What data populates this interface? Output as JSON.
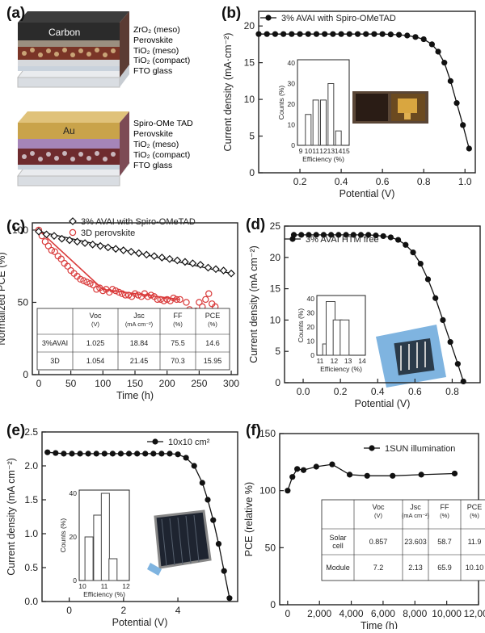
{
  "panels": {
    "a": {
      "label": "(a)",
      "top_stack": {
        "electrode": "Carbon",
        "layers": [
          "ZrO₂ (meso)",
          "Perovskite",
          "TiO₂ (meso)",
          "TiO₂ (compact)",
          "FTO glass"
        ]
      },
      "bottom_stack": {
        "electrode": "Au",
        "layers": [
          "Spiro-OMe TAD",
          "Perovskite",
          "TiO₂ (meso)",
          "TiO₂ (compact)",
          "FTO glass"
        ]
      }
    },
    "b": {
      "label": "(b)"
    },
    "c": {
      "label": "(c)"
    },
    "d": {
      "label": "(d)"
    },
    "e": {
      "label": "(e)"
    },
    "f": {
      "label": "(f)"
    }
  },
  "chart_data": [
    {
      "id": "b",
      "type": "line",
      "xlabel": "Potential (V)",
      "ylabel": "Current density (mA·cm⁻²)",
      "xlim": [
        0,
        1.05
      ],
      "ylim": [
        0,
        22
      ],
      "xticks": [
        "0.2",
        "0.4",
        "0.6",
        "0.8",
        "1.0"
      ],
      "yticks": [
        "0",
        "5",
        "10",
        "15",
        "20"
      ],
      "series": [
        {
          "name": "3% AVAI with Spiro-OMeTAD",
          "x": [
            0,
            0.04,
            0.08,
            0.12,
            0.16,
            0.2,
            0.24,
            0.28,
            0.32,
            0.36,
            0.4,
            0.44,
            0.48,
            0.52,
            0.56,
            0.6,
            0.64,
            0.68,
            0.72,
            0.76,
            0.8,
            0.84,
            0.87,
            0.9,
            0.93,
            0.96,
            0.99,
            1.02
          ],
          "y": [
            18.9,
            18.9,
            18.9,
            18.9,
            18.9,
            18.9,
            18.9,
            18.9,
            18.9,
            18.9,
            18.9,
            18.9,
            18.9,
            18.9,
            18.9,
            18.9,
            18.85,
            18.8,
            18.7,
            18.5,
            18.2,
            17.5,
            16.5,
            15.0,
            12.5,
            9.5,
            6.5,
            3.3
          ]
        }
      ],
      "inset": {
        "type": "bar",
        "xlabel": "Efficiency (%)",
        "ylabel": "Counts (%)",
        "categories": [
          "9",
          "10",
          "11",
          "12",
          "13",
          "14",
          "15"
        ],
        "ylim": [
          0,
          40
        ],
        "yticks": [
          "0",
          "10",
          "20",
          "30",
          "40"
        ],
        "values": [
          0,
          15,
          22,
          22,
          30,
          7,
          0
        ]
      }
    },
    {
      "id": "c",
      "type": "scatter",
      "xlabel": "Time (h)",
      "ylabel": "Normalized PCE (%)",
      "xlim": [
        -10,
        310
      ],
      "ylim": [
        0,
        105
      ],
      "xticks": [
        "0",
        "50",
        "100",
        "150",
        "200",
        "250",
        "300"
      ],
      "yticks": [
        "0",
        "50",
        "100"
      ],
      "series": [
        {
          "name": "3% AVAI with Spiro-OMeTAD",
          "color": "#111111",
          "x": [
            0,
            12,
            24,
            36,
            48,
            60,
            72,
            84,
            96,
            108,
            120,
            132,
            144,
            156,
            168,
            180,
            192,
            204,
            216,
            228,
            240,
            252,
            264,
            276,
            288,
            300
          ],
          "y": [
            99,
            97,
            96,
            94,
            93,
            92,
            91,
            90,
            89,
            88,
            87,
            86,
            85,
            84,
            83,
            82,
            81,
            80,
            79,
            78,
            77,
            76,
            74,
            73,
            72,
            70
          ]
        },
        {
          "name": "3D perovskite",
          "color": "#d93a3a",
          "x": [
            0,
            5,
            10,
            15,
            20,
            25,
            30,
            35,
            40,
            45,
            50,
            55,
            60,
            65,
            70,
            75,
            80,
            85,
            90,
            95,
            100,
            105,
            110,
            115,
            120,
            125,
            130,
            135,
            140,
            145,
            150,
            155,
            160,
            165,
            170,
            175,
            180,
            185,
            190,
            195,
            200,
            205,
            210,
            215,
            220,
            230,
            235,
            240,
            245,
            250,
            255,
            260,
            265,
            270,
            275
          ],
          "y": [
            100,
            96,
            92,
            89,
            86,
            85,
            82,
            80,
            77,
            75,
            72,
            70,
            68,
            66,
            65,
            64,
            63,
            62,
            59,
            60,
            58,
            59,
            57,
            59,
            58,
            57,
            56,
            55,
            55,
            54,
            56,
            55,
            54,
            56,
            54,
            55,
            54,
            52,
            52,
            51,
            52,
            51,
            53,
            52,
            52,
            50,
            45,
            42,
            44,
            50,
            47,
            52,
            56,
            49,
            47
          ]
        }
      ],
      "table": {
        "headers": [
          "",
          "Voc(V)",
          "Jsc (mA cm⁻²)",
          "FF (%)",
          "PCE (%)"
        ],
        "rows": [
          [
            "3%AVAI",
            "1.025",
            "18.84",
            "75.5",
            "14.6"
          ],
          [
            "3D",
            "1.054",
            "21.45",
            "70.3",
            "15.95"
          ]
        ]
      }
    },
    {
      "id": "d",
      "type": "line",
      "xlabel": "Potential (V)",
      "ylabel": "Current density (mA cm⁻²)",
      "xlim": [
        -0.1,
        0.95
      ],
      "ylim": [
        0,
        25
      ],
      "xticks": [
        "0.0",
        "0.2",
        "0.4",
        "0.6",
        "0.8"
      ],
      "yticks": [
        "0",
        "5",
        "10",
        "15",
        "20",
        "25"
      ],
      "series": [
        {
          "name": "3% AVAI HTM free",
          "x": [
            -0.05,
            -0.01,
            0.03,
            0.07,
            0.11,
            0.15,
            0.19,
            0.23,
            0.27,
            0.31,
            0.35,
            0.39,
            0.43,
            0.47,
            0.51,
            0.55,
            0.59,
            0.63,
            0.67,
            0.71,
            0.75,
            0.79,
            0.83,
            0.86
          ],
          "y": [
            23.6,
            23.6,
            23.6,
            23.6,
            23.6,
            23.6,
            23.6,
            23.6,
            23.6,
            23.6,
            23.6,
            23.5,
            23.4,
            23.2,
            22.8,
            22.0,
            20.8,
            19.0,
            16.5,
            13.5,
            10.0,
            6.5,
            3.0,
            0.2
          ]
        }
      ],
      "inset": {
        "type": "bar",
        "xlabel": "Efficiency (%)",
        "ylabel": "Counts (%)",
        "categories": [
          "11",
          "12",
          "13",
          "14"
        ],
        "ylim": [
          0,
          40
        ],
        "yticks": [
          "0",
          "10",
          "20",
          "30",
          "40"
        ],
        "x": [
          11.5,
          11.75,
          12.25,
          12.75
        ],
        "values": [
          8,
          38,
          25,
          25
        ]
      }
    },
    {
      "id": "e",
      "type": "line",
      "xlabel": "Potential (V)",
      "ylabel": "Current density (mA cm⁻²)",
      "xlim": [
        -1,
        6.2
      ],
      "ylim": [
        0,
        2.5
      ],
      "xticks": [
        "0",
        "2",
        "4"
      ],
      "yticks": [
        "0.0",
        "0.5",
        "1.0",
        "1.5",
        "2.0",
        "2.5"
      ],
      "series": [
        {
          "name": "10x10 cm²",
          "x": [
            -0.8,
            -0.5,
            -0.2,
            0.1,
            0.4,
            0.7,
            1.0,
            1.3,
            1.6,
            1.9,
            2.2,
            2.5,
            2.8,
            3.1,
            3.4,
            3.7,
            4.0,
            4.3,
            4.6,
            4.9,
            5.1,
            5.3,
            5.5,
            5.7,
            5.9
          ],
          "y": [
            2.2,
            2.19,
            2.18,
            2.18,
            2.18,
            2.18,
            2.18,
            2.18,
            2.18,
            2.18,
            2.18,
            2.18,
            2.18,
            2.18,
            2.18,
            2.18,
            2.17,
            2.12,
            2.0,
            1.75,
            1.5,
            1.2,
            0.85,
            0.45,
            0.05
          ]
        }
      ],
      "inset": {
        "type": "bar",
        "xlabel": "Efficiency (%)",
        "ylabel": "Counts (%)",
        "categories": [
          "10",
          "11",
          "12"
        ],
        "ylim": [
          0,
          40
        ],
        "yticks": [
          "0",
          "20",
          "40"
        ],
        "x": [
          10.3,
          10.7,
          11.05,
          11.4
        ],
        "values": [
          20,
          30,
          40,
          10
        ]
      }
    },
    {
      "id": "f",
      "type": "line",
      "xlabel": "Time (h)",
      "ylabel": "PCE (relative %)",
      "xlim": [
        -500,
        12000
      ],
      "ylim": [
        0,
        150
      ],
      "xticks": [
        "0",
        "2,000",
        "4,000",
        "6,000",
        "8,000",
        "10,000",
        "12,000"
      ],
      "yticks": [
        "0",
        "50",
        "100",
        "150"
      ],
      "series": [
        {
          "name": "1SUN illumination",
          "x": [
            0,
            300,
            600,
            1000,
            1800,
            2800,
            3900,
            5000,
            6600,
            8400,
            10500
          ],
          "y": [
            100,
            112,
            119,
            118,
            121,
            123,
            114,
            113,
            113,
            114,
            115
          ]
        }
      ],
      "table": {
        "headers": [
          "",
          "Voc (V)",
          "Jsc (mA cm⁻²)",
          "FF (%)",
          "PCE (%)"
        ],
        "rows": [
          [
            "Solar cell",
            "0.857",
            "23.603",
            "58.7",
            "11.9"
          ],
          [
            "Module",
            "7.2",
            "2.13",
            "65.9",
            "10.10"
          ]
        ]
      }
    }
  ]
}
